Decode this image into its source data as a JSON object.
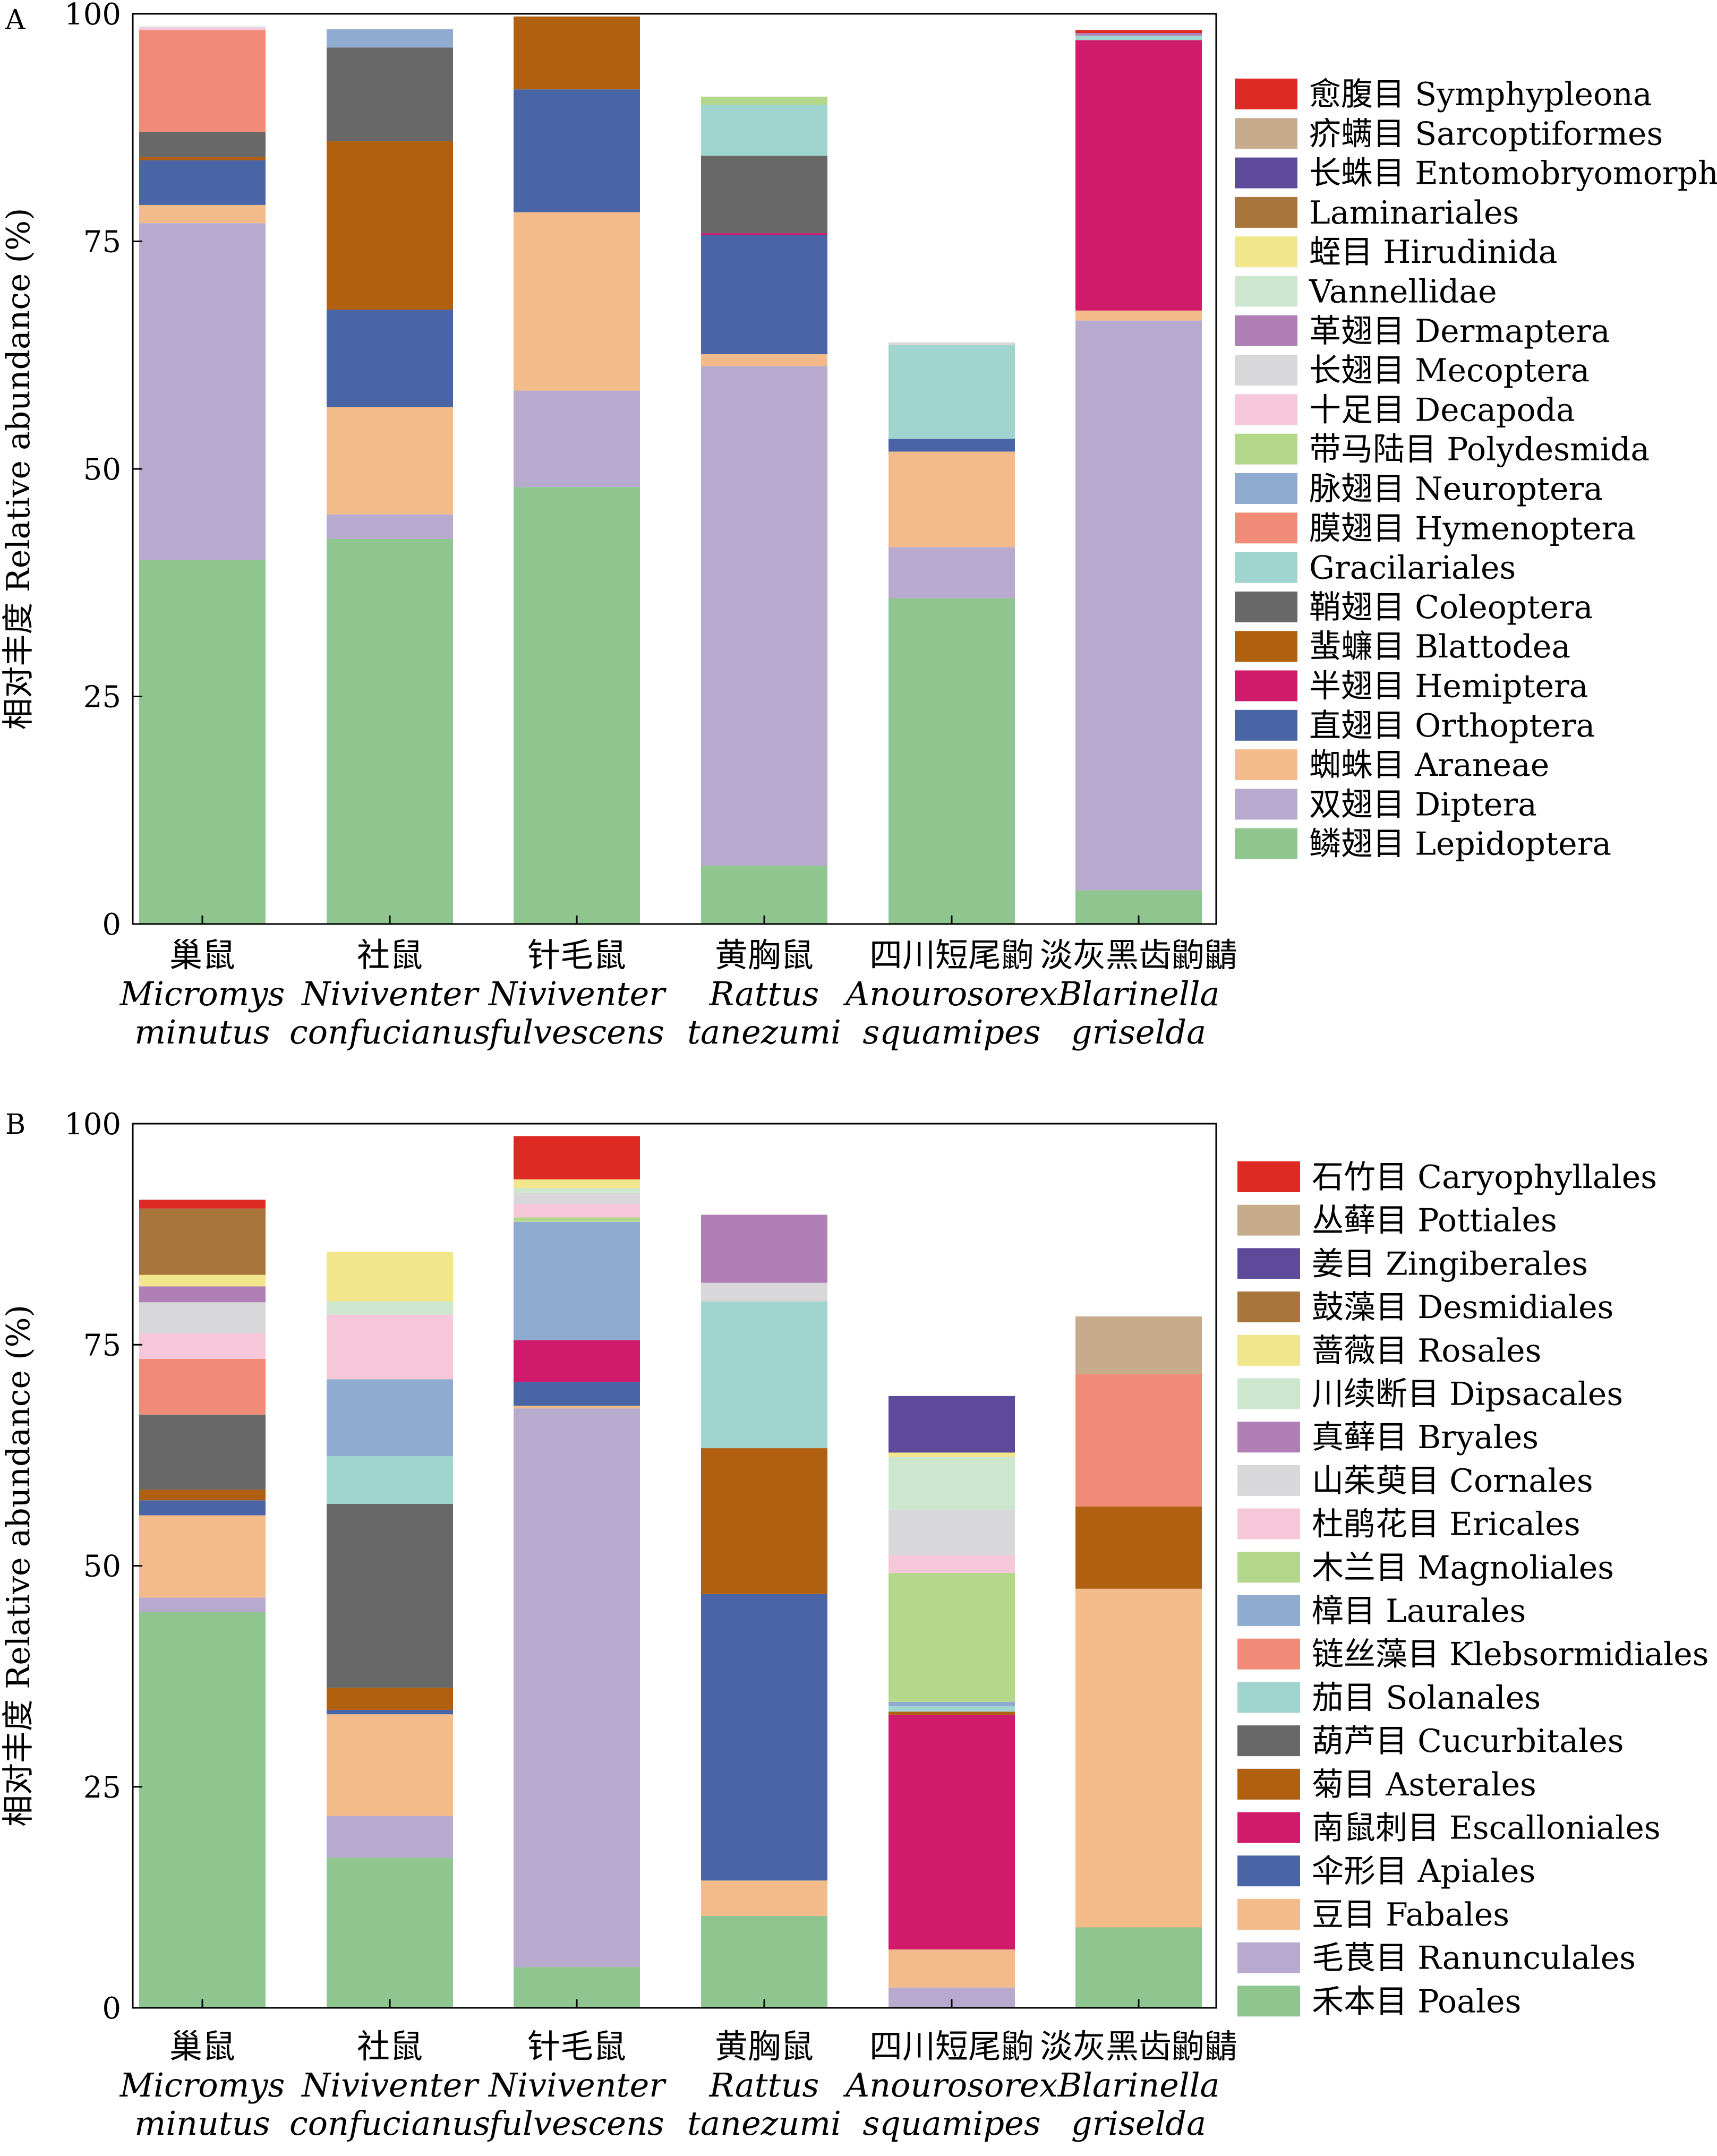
{
  "panels": [
    {
      "panel_label": "A",
      "chart_data": {
        "type": "bar",
        "stacked": true,
        "ylabel": "相对丰度 Relative abundance (%)",
        "xlabel": "",
        "ylim": [
          0,
          100
        ],
        "yticks": [
          0,
          25,
          50,
          75,
          100
        ],
        "grid": false,
        "legend_position": "right",
        "categories": [
          {
            "cn": "巢鼠",
            "latin": [
              "Micromys",
              "minutus"
            ]
          },
          {
            "cn": "社鼠",
            "latin": [
              "Niviventer",
              "confucianus"
            ]
          },
          {
            "cn": "针毛鼠",
            "latin": [
              "Niviventer",
              "fulvescens"
            ]
          },
          {
            "cn": "黄胸鼠",
            "latin": [
              "Rattus",
              "tanezumi"
            ]
          },
          {
            "cn": "四川短尾鼩",
            "latin": [
              "Anourosorex",
              "squamipes"
            ]
          },
          {
            "cn": "淡灰黑齿鼩鼱",
            "latin": [
              "Blarinella",
              "griselda"
            ]
          }
        ],
        "series": [
          {
            "name": "鳞翅目 Lepidoptera",
            "color": "#8fc68f",
            "values": [
              40,
              42.3,
              48,
              6.4,
              35.8,
              3.7
            ]
          },
          {
            "name": "双翅目 Diptera",
            "color": "#b8a9cf",
            "values": [
              37,
              2.7,
              10.6,
              54.9,
              5.6,
              62.6
            ]
          },
          {
            "name": "蜘蛛目 Araneae",
            "color": "#f4bb8a",
            "values": [
              2,
              11.8,
              19.6,
              1.3,
              10.5,
              1.1
            ]
          },
          {
            "name": "直翅目 Orthoptera",
            "color": "#4a65a5",
            "values": [
              4.9,
              10.7,
              13.5,
              13.1,
              1.4,
              0
            ]
          },
          {
            "name": "半翅目 Hemiptera",
            "color": "#d01a6b",
            "values": [
              0,
              0,
              0,
              0.2,
              0,
              29.7
            ]
          },
          {
            "name": "蜚蠊目 Blattodea",
            "color": "#b0600f",
            "values": [
              0.4,
              18.5,
              8,
              0,
              0,
              0
            ]
          },
          {
            "name": "鞘翅目 Coleoptera",
            "color": "#686868",
            "values": [
              2.7,
              10.3,
              0,
              8.5,
              0,
              0
            ]
          },
          {
            "name": "Gracilariales",
            "color": "#9fd4cf",
            "values": [
              0,
              0,
              0,
              5.6,
              10.3,
              0.5
            ]
          },
          {
            "name": "膜翅目 Hymenoptera",
            "color": "#f08b78",
            "values": [
              11.2,
              0,
              0,
              0,
              0,
              0
            ]
          },
          {
            "name": "脉翅目 Neuroptera",
            "color": "#8fabd0",
            "values": [
              0,
              2,
              0,
              0,
              0,
              0
            ]
          },
          {
            "name": "带马陆目 Polydesmida",
            "color": "#b3d88c",
            "values": [
              0,
              0,
              0,
              0.9,
              0,
              0
            ]
          },
          {
            "name": "十足目 Decapoda",
            "color": "#f6c7d8",
            "values": [
              0.3,
              0,
              0,
              0,
              0,
              0
            ]
          },
          {
            "name": "长翅目 Mecoptera",
            "color": "#d8d7d9",
            "values": [
              0.1,
              0,
              0,
              0,
              0.3,
              0
            ]
          },
          {
            "name": "革翅目 Dermaptera",
            "color": "#b07fb5",
            "values": [
              0,
              0,
              0,
              0,
              0,
              0.3
            ]
          },
          {
            "name": "Vannellidae",
            "color": "#cce7cd",
            "values": [
              0,
              0,
              0,
              0,
              0,
              0
            ]
          },
          {
            "name": "蛭目 Hirudinida",
            "color": "#f1e68c",
            "values": [
              0,
              0,
              0,
              0,
              0,
              0
            ]
          },
          {
            "name": "Laminariales",
            "color": "#a8763a",
            "values": [
              0,
              0,
              0,
              0,
              0,
              0
            ]
          },
          {
            "name": "长蛛目 Entomobryomorpha",
            "color": "#5e4a9a",
            "values": [
              0,
              0,
              0,
              0,
              0,
              0
            ]
          },
          {
            "name": "疥螨目 Sarcoptiformes",
            "color": "#c7ab8d",
            "values": [
              0,
              0,
              0,
              0,
              0,
              0
            ]
          },
          {
            "name": "愈腹目 Symphypleona",
            "color": "#dd2a22",
            "values": [
              0,
              0,
              0,
              0,
              0,
              0.3
            ]
          }
        ]
      }
    },
    {
      "panel_label": "B",
      "chart_data": {
        "type": "bar",
        "stacked": true,
        "ylabel": "相对丰度 Relative abundance (%)",
        "xlabel": "",
        "ylim": [
          0,
          100
        ],
        "yticks": [
          0,
          25,
          50,
          75,
          100
        ],
        "grid": false,
        "legend_position": "right",
        "categories": [
          {
            "cn": "巢鼠",
            "latin": [
              "Micromys",
              "minutus"
            ]
          },
          {
            "cn": "社鼠",
            "latin": [
              "Niviventer",
              "confucianus"
            ]
          },
          {
            "cn": "针毛鼠",
            "latin": [
              "Niviventer",
              "fulvescens"
            ]
          },
          {
            "cn": "黄胸鼠",
            "latin": [
              "Rattus",
              "tanezumi"
            ]
          },
          {
            "cn": "四川短尾鼩",
            "latin": [
              "Anourosorex",
              "squamipes"
            ]
          },
          {
            "cn": "淡灰黑齿鼩鼱",
            "latin": [
              "Blarinella",
              "griselda"
            ]
          }
        ],
        "series": [
          {
            "name": "禾本目 Poales",
            "color": "#8fc68f",
            "values": [
              44.8,
              17,
              4.6,
              10.4,
              0,
              9.1
            ]
          },
          {
            "name": "毛茛目 Ranunculales",
            "color": "#b8a9cf",
            "values": [
              1.6,
              4.7,
              63.2,
              0,
              2.3,
              0
            ]
          },
          {
            "name": "豆目 Fabales",
            "color": "#f4bb8a",
            "values": [
              9.3,
              11.5,
              0.3,
              4,
              4.3,
              38.3
            ]
          },
          {
            "name": "伞形目 Apiales",
            "color": "#4a65a5",
            "values": [
              1.7,
              0.5,
              2.7,
              32.4,
              0,
              0
            ]
          },
          {
            "name": "南鼠刺目 Escalloniales",
            "color": "#d01a6b",
            "values": [
              0,
              0,
              4.7,
              0,
              26.5,
              0
            ]
          },
          {
            "name": "菊目 Asterales",
            "color": "#b0600f",
            "values": [
              1.2,
              2.5,
              0,
              16.5,
              0.4,
              9.3
            ]
          },
          {
            "name": "葫芦目 Cucurbitales",
            "color": "#686868",
            "values": [
              8.5,
              20.8,
              0,
              0,
              0,
              0
            ]
          },
          {
            "name": "茄目 Solanales",
            "color": "#9fd4cf",
            "values": [
              0,
              5.4,
              0,
              16.6,
              0.6,
              0
            ]
          },
          {
            "name": "链丝藻目 Klebsormidiales",
            "color": "#f08b78",
            "values": [
              6.3,
              0,
              0,
              0,
              0,
              15
            ]
          },
          {
            "name": "樟目 Laurales",
            "color": "#8fabd0",
            "values": [
              0,
              8.7,
              13.4,
              0,
              0.5,
              0
            ]
          },
          {
            "name": "木兰目 Magnoliales",
            "color": "#b3d88c",
            "values": [
              0,
              0,
              0.5,
              0,
              14.6,
              0
            ]
          },
          {
            "name": "杜鹃花目 Ericales",
            "color": "#f6c7d8",
            "values": [
              2.9,
              7.3,
              1.5,
              0,
              2,
              0
            ]
          },
          {
            "name": "山茱萸目 Cornales",
            "color": "#d8d7d9",
            "values": [
              3.5,
              0,
              1.3,
              2.1,
              5.1,
              0
            ]
          },
          {
            "name": "真藓目 Bryales",
            "color": "#b07fb5",
            "values": [
              1.8,
              0,
              0,
              7.7,
              0,
              0
            ]
          },
          {
            "name": "川续断目 Dipsacales",
            "color": "#cce7cd",
            "values": [
              0,
              1.5,
              0.5,
              0,
              6,
              0
            ]
          },
          {
            "name": "蔷薇目 Rosales",
            "color": "#f1e68c",
            "values": [
              1.3,
              5.6,
              1,
              0,
              0.5,
              0
            ]
          },
          {
            "name": "鼓藻目 Desmidiales",
            "color": "#a8763a",
            "values": [
              7.5,
              0,
              0,
              0,
              0,
              0
            ]
          },
          {
            "name": "姜目 Zingiberales",
            "color": "#5e4a9a",
            "values": [
              0,
              0,
              0,
              0,
              6.4,
              0
            ]
          },
          {
            "name": "丛藓目 Pottiales",
            "color": "#c7ab8d",
            "values": [
              0,
              0,
              0,
              0,
              0,
              6.5
            ]
          },
          {
            "name": "石竹目 Caryophyllales",
            "color": "#dd2a22",
            "values": [
              1,
              0,
              4.9,
              0,
              0,
              0
            ]
          }
        ]
      }
    }
  ]
}
